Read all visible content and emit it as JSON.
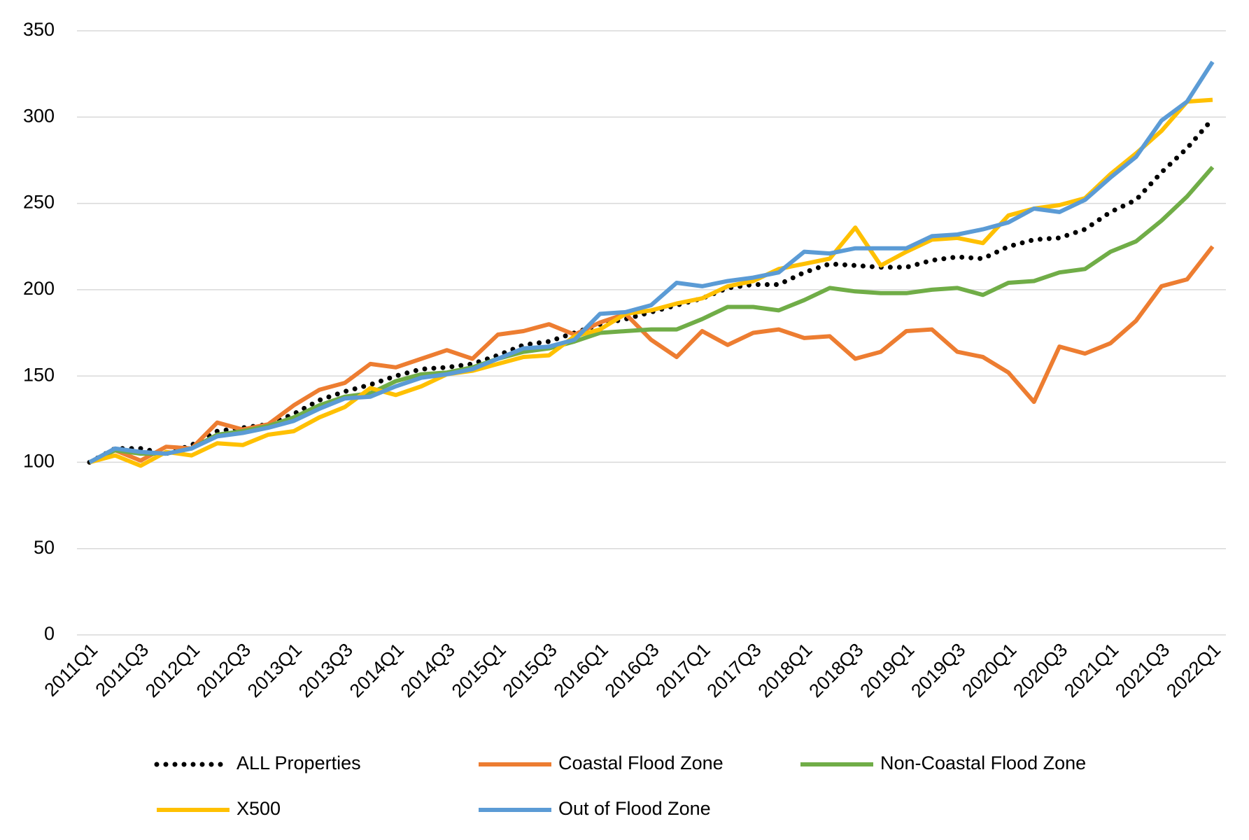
{
  "chart_data": {
    "type": "line",
    "categories": [
      "2011Q1",
      null,
      "2011Q3",
      null,
      "2012Q1",
      null,
      "2012Q3",
      null,
      "2013Q1",
      null,
      "2013Q3",
      null,
      "2014Q1",
      null,
      "2014Q3",
      null,
      "2015Q1",
      null,
      "2015Q3",
      null,
      "2016Q1",
      null,
      "2016Q3",
      null,
      "2017Q1",
      null,
      "2017Q3",
      null,
      "2018Q1",
      null,
      "2018Q3",
      null,
      "2019Q1",
      null,
      "2019Q3",
      null,
      "2020Q1",
      null,
      "2020Q3",
      null,
      "2021Q1",
      null,
      "2021Q3",
      null,
      "2022Q1"
    ],
    "series": [
      {
        "name": "ALL Properties",
        "color": "#000000",
        "dotted": true,
        "values": [
          100,
          108,
          108,
          105,
          110,
          118,
          120,
          122,
          128,
          136,
          141,
          145,
          150,
          154,
          155,
          157,
          162,
          168,
          170,
          175,
          180,
          183,
          187,
          191,
          195,
          201,
          203,
          203,
          210,
          215,
          214,
          213,
          213,
          217,
          219,
          218,
          225,
          229,
          230,
          235,
          245,
          252,
          268,
          282,
          299
        ]
      },
      {
        "name": "Coastal Flood Zone",
        "color": "#ed7d31",
        "values": [
          100,
          107,
          101,
          109,
          108,
          123,
          119,
          122,
          133,
          142,
          146,
          157,
          155,
          160,
          165,
          160,
          174,
          176,
          180,
          174,
          181,
          186,
          171,
          161,
          176,
          168,
          175,
          177,
          172,
          173,
          160,
          164,
          176,
          177,
          164,
          161,
          152,
          135,
          167,
          163,
          169,
          182,
          202,
          206,
          225
        ]
      },
      {
        "name": "Non-Coastal Flood Zone",
        "color": "#70ad47",
        "values": [
          100,
          107,
          105,
          105,
          108,
          116,
          118,
          121,
          126,
          133,
          138,
          140,
          147,
          151,
          152,
          155,
          160,
          164,
          166,
          170,
          175,
          176,
          177,
          177,
          183,
          190,
          190,
          188,
          194,
          201,
          199,
          198,
          198,
          200,
          201,
          197,
          204,
          205,
          210,
          212,
          222,
          228,
          240,
          254,
          271
        ]
      },
      {
        "name": "X500",
        "color": "#ffc000",
        "values": [
          100,
          104,
          98,
          106,
          104,
          111,
          110,
          116,
          118,
          126,
          132,
          143,
          139,
          144,
          151,
          153,
          157,
          161,
          162,
          173,
          177,
          186,
          188,
          192,
          195,
          202,
          205,
          212,
          215,
          218,
          236,
          214,
          222,
          229,
          230,
          227,
          243,
          247,
          249,
          253,
          267,
          279,
          292,
          309,
          310
        ]
      },
      {
        "name": "Out of Flood Zone",
        "color": "#5b9bd5",
        "values": [
          100,
          108,
          106,
          105,
          108,
          115,
          117,
          120,
          124,
          131,
          137,
          138,
          144,
          149,
          151,
          154,
          160,
          166,
          167,
          171,
          186,
          187,
          191,
          204,
          202,
          205,
          207,
          210,
          222,
          221,
          224,
          224,
          224,
          231,
          232,
          235,
          239,
          247,
          245,
          252,
          265,
          277,
          298,
          309,
          332
        ]
      }
    ],
    "ylim": [
      0,
      350
    ],
    "yticks": [
      0,
      50,
      100,
      150,
      200,
      250,
      300,
      350
    ],
    "grid": true,
    "legend": "bottom"
  }
}
